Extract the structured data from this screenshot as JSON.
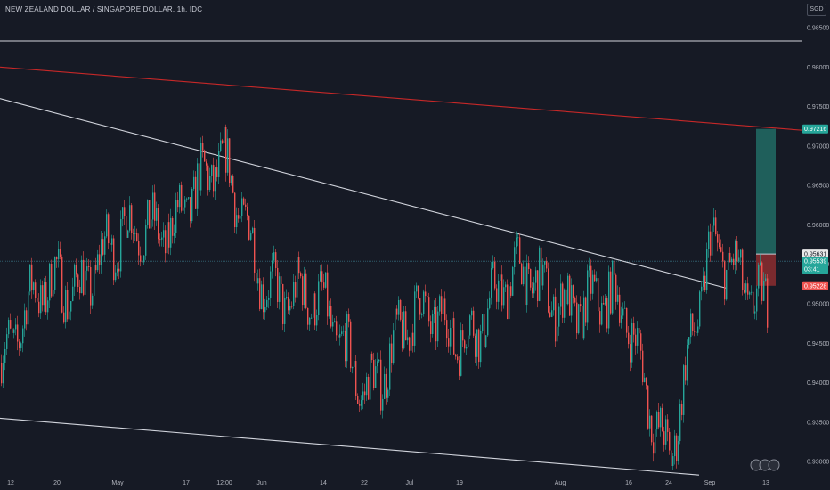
{
  "header": {
    "title": "NEW ZEALAND DOLLAR / SINGAPORE DOLLAR, 1h, IDC",
    "currency": "SGD"
  },
  "colors": {
    "background": "#161a25",
    "up": "#26a69a",
    "down": "#ef5350",
    "trend_white": "#d1d4dc",
    "trend_red": "#c62828",
    "target_zone": "#1f5f5b",
    "stop_zone": "#7a2a2e"
  },
  "chart_data": {
    "type": "candlestick",
    "title": "NEW ZEALAND DOLLAR / SINGAPORE DOLLAR, 1h, IDC",
    "y_ticks": [
      "0.98500",
      "0.98000",
      "0.97500",
      "0.97000",
      "0.96500",
      "0.96000",
      "0.95500",
      "0.95000",
      "0.94500",
      "0.94000",
      "0.93500",
      "0.93000"
    ],
    "ylim": [
      0.9264,
      0.9885
    ],
    "x_ticks": [
      "12",
      "20",
      "May",
      "17",
      "12:00",
      "Jun",
      "14",
      "22",
      "Jul",
      "19",
      "Aug",
      "16",
      "24",
      "Sep",
      "13"
    ],
    "price_path": [
      [
        "12",
        0.9425
      ],
      [
        "20",
        0.9545
      ],
      [
        "May",
        0.9555
      ],
      [
        "17",
        0.9645
      ],
      [
        "12:00",
        0.9645
      ],
      [
        "Jun",
        0.956
      ],
      [
        "14",
        0.9465
      ],
      [
        "22",
        0.942
      ],
      [
        "Jul",
        0.9455
      ],
      [
        "19",
        0.9485
      ],
      [
        "Aug",
        0.953
      ],
      [
        "16",
        0.946
      ],
      [
        "24",
        0.933
      ],
      [
        "Sep",
        0.954
      ],
      [
        "13",
        0.953
      ]
    ],
    "key_levels": {
      "resistance": 0.9833,
      "current_price_line": 0.95539
    },
    "trendlines": [
      {
        "name": "descending-resistance",
        "color": "white",
        "from": [
          "12",
          0.976
        ],
        "to": [
          "Sep",
          0.952
        ]
      },
      {
        "name": "lower-support",
        "color": "white",
        "from": [
          "12",
          0.9355
        ],
        "to": [
          "Sep",
          0.9283
        ]
      },
      {
        "name": "long-term-resistance",
        "color": "red",
        "from": [
          "12",
          0.98
        ],
        "to": [
          "13",
          0.972
        ]
      }
    ],
    "position": {
      "target": 0.97216,
      "entry": 0.95631,
      "stop": 0.95228
    },
    "price_tags": [
      {
        "value": "0.97216",
        "color": "#26a69a",
        "price": 0.97216
      },
      {
        "value": "0.95631",
        "color": "#e8e8e8",
        "price": 0.95631
      },
      {
        "value": "0.95539",
        "color": "#26a69a",
        "price": 0.95539
      },
      {
        "value": "03:41",
        "color": "#26a69a",
        "price": 0.95539
      },
      {
        "value": "0.95228",
        "color": "#ef5350",
        "price": 0.95228
      }
    ],
    "grid": false
  }
}
